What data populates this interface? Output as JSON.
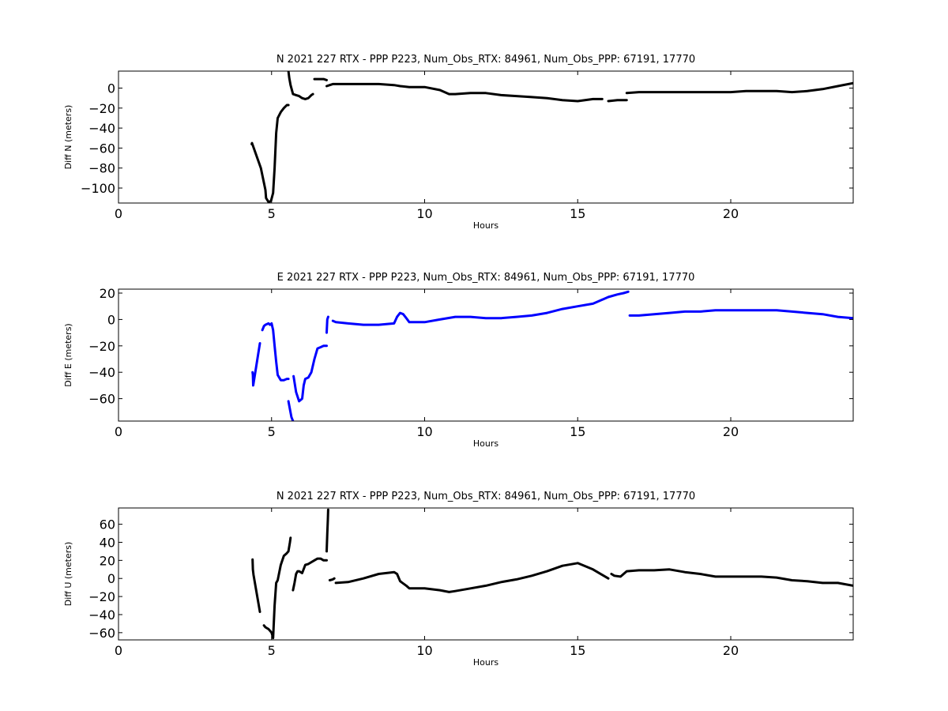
{
  "chart_data": [
    {
      "type": "scatter",
      "title": "N 2021 227 RTX - PPP  P223, Num_Obs_RTX: 84961, Num_Obs_PPP: 67191, 17770",
      "xlabel": "Hours",
      "ylabel": "Diff N (meters)",
      "xlim": [
        0,
        24
      ],
      "ylim": [
        -115,
        17
      ],
      "xticks": [
        0,
        5,
        10,
        15,
        20
      ],
      "yticks": [
        -100,
        -80,
        -60,
        -40,
        -20,
        0
      ],
      "grid": false,
      "color": "#000000",
      "series": [
        {
          "values": [
            [
              4.35,
              -56
            ],
            [
              4.36,
              -55
            ],
            [
              4.65,
              -80
            ],
            [
              4.8,
              -102
            ],
            [
              4.82,
              -110
            ],
            [
              4.9,
              -114
            ],
            [
              4.98,
              -113
            ],
            [
              5.05,
              -105
            ],
            [
              5.1,
              -80
            ],
            [
              5.15,
              -45
            ],
            [
              5.2,
              -30
            ],
            [
              5.3,
              -24
            ],
            [
              5.4,
              -20
            ],
            [
              5.5,
              -17
            ],
            [
              5.55,
              -17
            ]
          ]
        },
        {
          "values": [
            [
              5.55,
              17
            ],
            [
              5.58,
              10
            ],
            [
              5.62,
              3
            ],
            [
              5.7,
              -6
            ],
            [
              5.8,
              -7
            ],
            [
              5.9,
              -8
            ],
            [
              6.0,
              -10
            ],
            [
              6.1,
              -11
            ],
            [
              6.2,
              -10
            ],
            [
              6.3,
              -7
            ],
            [
              6.35,
              -6
            ]
          ]
        },
        {
          "values": [
            [
              6.4,
              9
            ],
            [
              6.5,
              9
            ],
            [
              6.6,
              9
            ],
            [
              6.7,
              9
            ],
            [
              6.8,
              8
            ]
          ]
        },
        {
          "values": [
            [
              6.8,
              2
            ],
            [
              6.9,
              3
            ],
            [
              7.0,
              4
            ],
            [
              7.1,
              4
            ],
            [
              7.5,
              4
            ],
            [
              8.0,
              4
            ],
            [
              8.5,
              4
            ],
            [
              9.0,
              3
            ],
            [
              9.2,
              2
            ],
            [
              9.5,
              1
            ],
            [
              10.0,
              1
            ],
            [
              10.5,
              -2
            ],
            [
              10.8,
              -6
            ],
            [
              11.0,
              -6
            ],
            [
              11.5,
              -5
            ],
            [
              12.0,
              -5
            ],
            [
              12.5,
              -7
            ],
            [
              13.0,
              -8
            ],
            [
              13.5,
              -9
            ],
            [
              14.0,
              -10
            ],
            [
              14.5,
              -12
            ],
            [
              15.0,
              -13
            ],
            [
              15.5,
              -11
            ],
            [
              15.8,
              -11
            ]
          ]
        },
        {
          "values": [
            [
              16.0,
              -13
            ],
            [
              16.3,
              -12
            ],
            [
              16.6,
              -12
            ]
          ]
        },
        {
          "values": [
            [
              16.6,
              -5
            ],
            [
              17.0,
              -4
            ],
            [
              17.5,
              -4
            ],
            [
              18.0,
              -4
            ],
            [
              18.5,
              -4
            ],
            [
              19.0,
              -4
            ],
            [
              19.5,
              -4
            ],
            [
              20.0,
              -4
            ],
            [
              20.5,
              -3
            ],
            [
              21.0,
              -3
            ],
            [
              21.5,
              -3
            ],
            [
              22.0,
              -4
            ],
            [
              22.5,
              -3
            ],
            [
              23.0,
              -1
            ],
            [
              23.5,
              2
            ],
            [
              24.0,
              5
            ]
          ]
        }
      ]
    },
    {
      "type": "scatter",
      "title": "E 2021 227 RTX - PPP  P223, Num_Obs_RTX: 84961, Num_Obs_PPP: 67191, 17770",
      "xlabel": "Hours",
      "ylabel": "Diff E (meters)",
      "xlim": [
        0,
        24
      ],
      "ylim": [
        -77,
        23
      ],
      "xticks": [
        0,
        5,
        10,
        15,
        20
      ],
      "yticks": [
        -60,
        -40,
        -20,
        0,
        20
      ],
      "grid": false,
      "color": "#0000ff",
      "series": [
        {
          "values": [
            [
              4.38,
              -40
            ],
            [
              4.39,
              -42
            ],
            [
              4.4,
              -50
            ],
            [
              4.62,
              -18
            ]
          ]
        },
        {
          "values": [
            [
              4.7,
              -8
            ],
            [
              4.75,
              -5
            ],
            [
              4.8,
              -4
            ],
            [
              4.9,
              -3
            ],
            [
              4.95,
              -4
            ],
            [
              5.0,
              -3
            ],
            [
              5.05,
              -8
            ],
            [
              5.1,
              -20
            ],
            [
              5.15,
              -32
            ],
            [
              5.2,
              -42
            ],
            [
              5.3,
              -46
            ],
            [
              5.4,
              -46
            ],
            [
              5.5,
              -45
            ],
            [
              5.55,
              -45
            ]
          ]
        },
        {
          "values": [
            [
              5.55,
              -62
            ],
            [
              5.6,
              -68
            ],
            [
              5.65,
              -74
            ],
            [
              5.7,
              -77
            ]
          ]
        },
        {
          "values": [
            [
              5.72,
              -43
            ],
            [
              5.8,
              -55
            ],
            [
              5.9,
              -62
            ],
            [
              6.0,
              -60
            ],
            [
              6.05,
              -50
            ],
            [
              6.1,
              -45
            ],
            [
              6.2,
              -44
            ],
            [
              6.3,
              -40
            ],
            [
              6.4,
              -30
            ],
            [
              6.5,
              -22
            ],
            [
              6.6,
              -21
            ],
            [
              6.7,
              -20
            ],
            [
              6.8,
              -20
            ]
          ]
        },
        {
          "values": [
            [
              6.8,
              -10
            ],
            [
              6.82,
              0
            ],
            [
              6.85,
              2
            ]
          ]
        },
        {
          "values": [
            [
              7.0,
              -1
            ],
            [
              7.1,
              -2
            ],
            [
              7.5,
              -3
            ],
            [
              8.0,
              -4
            ],
            [
              8.5,
              -4
            ],
            [
              9.0,
              -3
            ],
            [
              9.1,
              2
            ],
            [
              9.2,
              5
            ],
            [
              9.3,
              4
            ],
            [
              9.4,
              1
            ],
            [
              9.5,
              -2
            ],
            [
              10.0,
              -2
            ],
            [
              10.5,
              0
            ],
            [
              11.0,
              2
            ],
            [
              11.5,
              2
            ],
            [
              12.0,
              1
            ],
            [
              12.5,
              1
            ],
            [
              13.0,
              2
            ],
            [
              13.5,
              3
            ],
            [
              14.0,
              5
            ],
            [
              14.5,
              8
            ],
            [
              15.0,
              10
            ],
            [
              15.5,
              12
            ],
            [
              16.0,
              17
            ],
            [
              16.3,
              19
            ],
            [
              16.5,
              20
            ],
            [
              16.65,
              21
            ]
          ]
        },
        {
          "values": [
            [
              16.7,
              3
            ],
            [
              17.0,
              3
            ],
            [
              17.5,
              4
            ],
            [
              18.0,
              5
            ],
            [
              18.5,
              6
            ],
            [
              19.0,
              6
            ],
            [
              19.5,
              7
            ],
            [
              20.0,
              7
            ],
            [
              20.5,
              7
            ],
            [
              21.0,
              7
            ],
            [
              21.5,
              7
            ],
            [
              22.0,
              6
            ],
            [
              22.5,
              5
            ],
            [
              23.0,
              4
            ],
            [
              23.5,
              2
            ],
            [
              24.0,
              1
            ]
          ]
        }
      ]
    },
    {
      "type": "scatter",
      "title": "N 2021 227 RTX - PPP  P223, Num_Obs_RTX: 84961, Num_Obs_PPP: 67191, 17770",
      "xlabel": "Hours",
      "ylabel": "Diff U (meters)",
      "xlim": [
        0,
        24
      ],
      "ylim": [
        -68,
        78
      ],
      "xticks": [
        0,
        5,
        10,
        15,
        20
      ],
      "yticks": [
        -60,
        -40,
        -20,
        0,
        20,
        40,
        60
      ],
      "grid": false,
      "color": "#000000",
      "series": [
        {
          "values": [
            [
              4.38,
              21
            ],
            [
              4.39,
              10
            ],
            [
              4.4,
              7
            ],
            [
              4.41,
              4
            ],
            [
              4.62,
              -37
            ]
          ]
        },
        {
          "values": [
            [
              4.75,
              -52
            ],
            [
              4.8,
              -54
            ],
            [
              4.9,
              -56
            ],
            [
              5.0,
              -60
            ],
            [
              5.05,
              -66
            ],
            [
              5.1,
              -30
            ],
            [
              5.15,
              -5
            ],
            [
              5.2,
              -2
            ],
            [
              5.3,
              15
            ],
            [
              5.4,
              25
            ],
            [
              5.5,
              28
            ],
            [
              5.55,
              30
            ],
            [
              5.6,
              40
            ],
            [
              5.62,
              45
            ]
          ]
        },
        {
          "values": [
            [
              5.7,
              -13
            ],
            [
              5.75,
              -5
            ],
            [
              5.8,
              5
            ],
            [
              5.85,
              8
            ],
            [
              5.9,
              8
            ],
            [
              6.0,
              6
            ],
            [
              6.1,
              15
            ],
            [
              6.2,
              16
            ],
            [
              6.3,
              18
            ],
            [
              6.4,
              20
            ],
            [
              6.5,
              22
            ],
            [
              6.6,
              22
            ],
            [
              6.7,
              20
            ],
            [
              6.8,
              20
            ]
          ]
        },
        {
          "values": [
            [
              6.8,
              30
            ],
            [
              6.82,
              50
            ],
            [
              6.84,
              65
            ],
            [
              6.85,
              76
            ]
          ]
        },
        {
          "values": [
            [
              6.9,
              -2
            ],
            [
              7.0,
              -1
            ],
            [
              7.05,
              0
            ]
          ]
        },
        {
          "values": [
            [
              7.1,
              -5
            ],
            [
              7.5,
              -4
            ],
            [
              8.0,
              0
            ],
            [
              8.5,
              5
            ],
            [
              9.0,
              7
            ],
            [
              9.1,
              5
            ],
            [
              9.2,
              -3
            ],
            [
              9.4,
              -8
            ],
            [
              9.5,
              -11
            ],
            [
              10.0,
              -11
            ],
            [
              10.5,
              -13
            ],
            [
              10.8,
              -15
            ],
            [
              11.0,
              -14
            ],
            [
              11.5,
              -11
            ],
            [
              12.0,
              -8
            ],
            [
              12.5,
              -4
            ],
            [
              13.0,
              -1
            ],
            [
              13.5,
              3
            ],
            [
              14.0,
              8
            ],
            [
              14.5,
              14
            ],
            [
              15.0,
              17
            ],
            [
              15.5,
              10
            ],
            [
              16.0,
              0
            ]
          ]
        },
        {
          "values": [
            [
              16.1,
              5
            ],
            [
              16.2,
              3
            ],
            [
              16.4,
              2
            ],
            [
              16.6,
              8
            ],
            [
              17.0,
              9
            ],
            [
              17.5,
              9
            ],
            [
              18.0,
              10
            ],
            [
              18.5,
              7
            ],
            [
              19.0,
              5
            ],
            [
              19.5,
              2
            ],
            [
              20.0,
              2
            ],
            [
              20.5,
              2
            ],
            [
              21.0,
              2
            ],
            [
              21.5,
              1
            ],
            [
              22.0,
              -2
            ],
            [
              22.5,
              -3
            ],
            [
              23.0,
              -5
            ],
            [
              23.5,
              -5
            ],
            [
              24.0,
              -8
            ]
          ]
        }
      ]
    }
  ]
}
